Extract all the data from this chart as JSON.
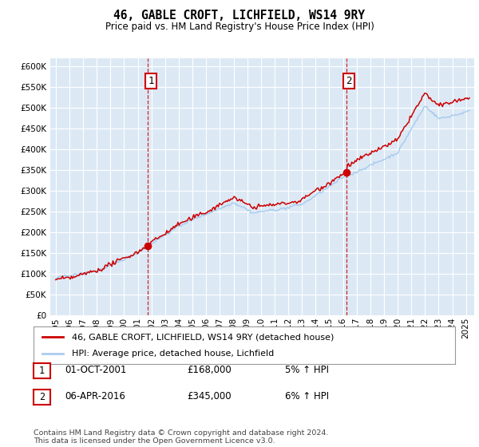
{
  "title": "46, GABLE CROFT, LICHFIELD, WS14 9RY",
  "subtitle": "Price paid vs. HM Land Registry's House Price Index (HPI)",
  "background_color": "#dce9f5",
  "line1_color": "#cc0000",
  "line2_color": "#aaccee",
  "ylim": [
    0,
    620000
  ],
  "yticks": [
    0,
    50000,
    100000,
    150000,
    200000,
    250000,
    300000,
    350000,
    400000,
    450000,
    500000,
    550000,
    600000
  ],
  "xlim_start": 1994.6,
  "xlim_end": 2025.6,
  "marker1_x": 2001.75,
  "marker1_y": 168000,
  "marker2_x": 2016.25,
  "marker2_y": 345000,
  "legend_label1": "46, GABLE CROFT, LICHFIELD, WS14 9RY (detached house)",
  "legend_label2": "HPI: Average price, detached house, Lichfield",
  "table_row1": [
    "1",
    "01-OCT-2001",
    "£168,000",
    "5% ↑ HPI"
  ],
  "table_row2": [
    "2",
    "06-APR-2016",
    "£345,000",
    "6% ↑ HPI"
  ],
  "footer": "Contains HM Land Registry data © Crown copyright and database right 2024.\nThis data is licensed under the Open Government Licence v3.0.",
  "xtick_years": [
    1995,
    1996,
    1997,
    1998,
    1999,
    2000,
    2001,
    2002,
    2003,
    2004,
    2005,
    2006,
    2007,
    2008,
    2009,
    2010,
    2011,
    2012,
    2013,
    2014,
    2015,
    2016,
    2017,
    2018,
    2019,
    2020,
    2021,
    2022,
    2023,
    2024,
    2025
  ],
  "hpi_seed": 42,
  "noise_scale_hpi": 1500,
  "noise_scale_red": 2500
}
